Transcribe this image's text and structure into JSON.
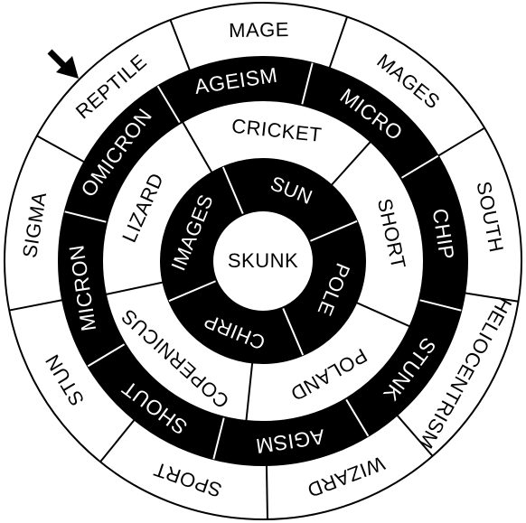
{
  "colors": {
    "ink": "#000000",
    "paper": "#ffffff"
  },
  "pointer": {
    "icon": "arrow-down-right-icon"
  },
  "center": {
    "label": "SKUNK"
  },
  "rings": [
    {
      "id": "ring-1",
      "fill": "#000000",
      "text_color": "#ffffff",
      "start_angle": -113,
      "items": [
        "SUN",
        "POLE",
        "CHIRP",
        "IMAGES"
      ]
    },
    {
      "id": "ring-2",
      "fill": "#ffffff",
      "text_color": "#000000",
      "start_angle": -120,
      "items": [
        "CRICKET",
        "SHORT",
        "POLAND",
        "COPERNICUS",
        "LIZARD"
      ]
    },
    {
      "id": "ring-3",
      "fill": "#000000",
      "text_color": "#ffffff",
      "start_angle": -121,
      "items": [
        "AGEISM",
        "MICRO",
        "CHIP",
        "STUNK",
        "AGISM",
        "SHOUT",
        "MICRON",
        "OMICRON"
      ]
    },
    {
      "id": "ring-4",
      "fill": "#ffffff",
      "text_color": "#000000",
      "start_angle": -111,
      "items": [
        "MAGE",
        "MAGES",
        "SOUTH",
        "HELIOCENTRISM",
        "WIZARD",
        "SPORT",
        "STUN",
        "SIGMA",
        "REPTILE"
      ]
    }
  ]
}
